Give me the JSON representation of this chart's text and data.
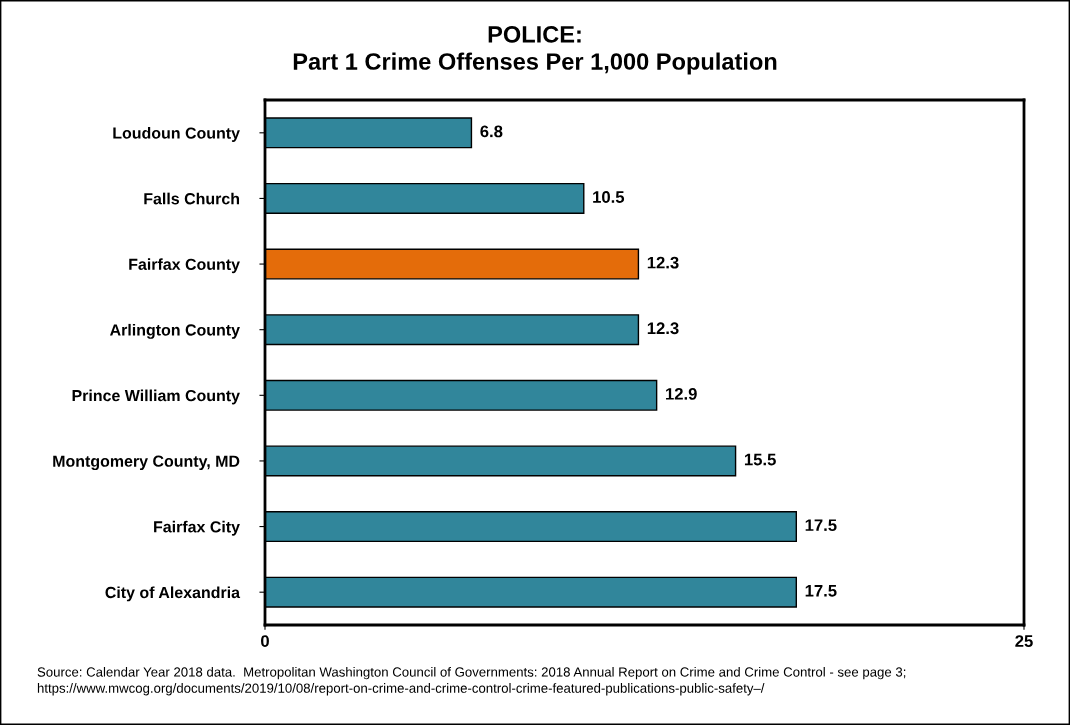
{
  "chart_data": {
    "type": "bar",
    "orientation": "horizontal",
    "title": "POLICE:\nPart 1 Crime Offenses Per 1,000 Population",
    "categories": [
      "Loudoun County",
      "Falls Church",
      "Fairfax County",
      "Arlington County",
      "Prince William County",
      "Montgomery County, MD",
      "Fairfax City",
      "City of Alexandria"
    ],
    "values": [
      6.8,
      10.5,
      12.3,
      12.3,
      12.9,
      15.5,
      17.5,
      17.5
    ],
    "colors": [
      "#31869b",
      "#31869b",
      "#e46c0a",
      "#31869b",
      "#31869b",
      "#31869b",
      "#31869b",
      "#31869b"
    ],
    "xlim": [
      0,
      25
    ],
    "xticks": [
      0,
      25
    ],
    "grid": false,
    "data_labels": true,
    "annotations": [
      "Source: Calendar Year 2018 data.  Metropolitan Washington Council of Governments: 2018 Annual Report on Crime and Crime Control - see page 3;\nhttps://www.mwcog.org/documents/2019/10/08/report-on-crime-and-crime-control-crime-featured-publications-public-safety–/"
    ]
  }
}
